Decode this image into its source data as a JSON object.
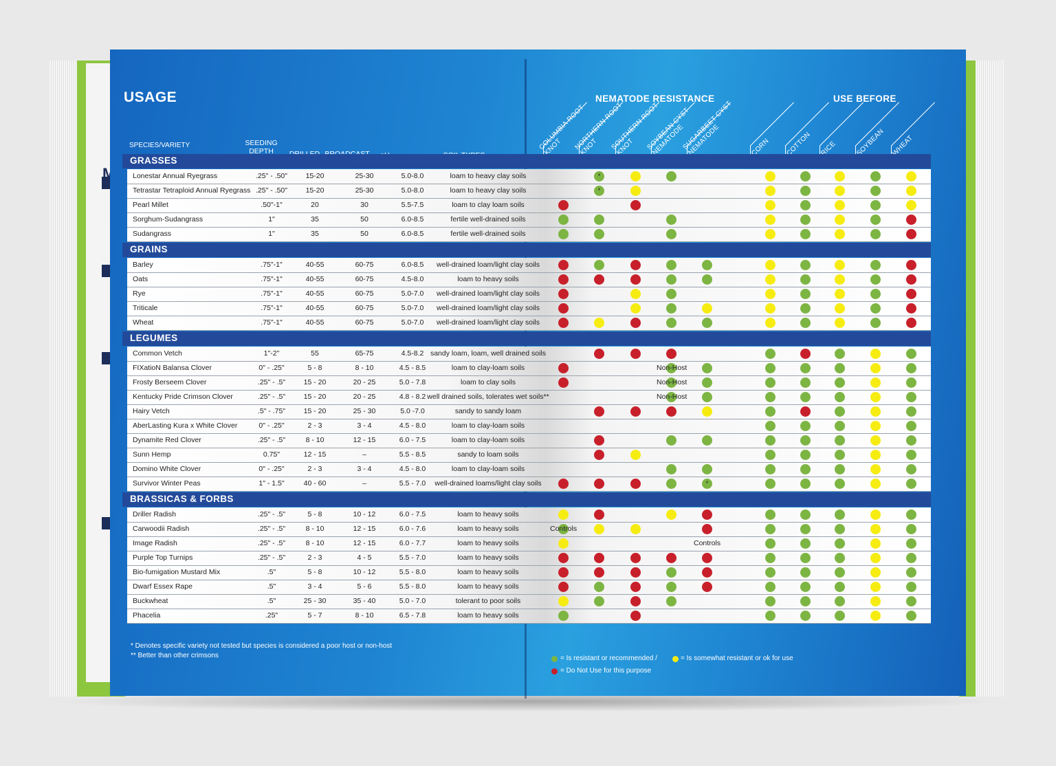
{
  "usage_title": "USAGE",
  "headers": {
    "species": "SPECIES/VARIETY",
    "seeding_depth": "SEEDING DEPTH",
    "drilled": "DRILLED",
    "broadcast": "BROADCAST",
    "ph": "pH",
    "soil_types": "SOIL TYPES",
    "nematode": "NEMATODE RESISTANCE",
    "use_before": "USE BEFORE"
  },
  "nematode_cols": [
    "COLUMBIA ROOT KNOT",
    "NORTHERN ROOT KNOT",
    "SOUTHERN ROOT KNOT",
    "SOYBEAN CYST NEMATODE",
    "SUGARBEET CYST NEMATODE"
  ],
  "use_before_cols": [
    "CORN",
    "COTTON",
    "RICE",
    "SOYBEAN",
    "WHEAT"
  ],
  "legend_codes": {
    "g": "resistant or recommended",
    "y": "somewhat resistant or ok for use",
    "r": "do not use"
  },
  "colors": {
    "green": "#7db543",
    "yellow": "#f6ec12",
    "red": "#c8202b",
    "band": "#234a9a"
  },
  "sections": [
    {
      "title": "GRASSES",
      "rows": [
        {
          "name": "Lonestar Annual Ryegrass",
          "depth": ".25\" - .50\"",
          "drilled": "15-20",
          "broadcast": "25-30",
          "ph": "5.0-8.0",
          "soil": "loam to heavy clay soils",
          "nem": [
            "",
            "g*",
            "y",
            "g",
            ""
          ],
          "use": [
            "y",
            "g",
            "y",
            "g",
            "y"
          ]
        },
        {
          "name": "Tetrastar Tetraploid Annual Ryegrass",
          "depth": ".25\" - .50\"",
          "drilled": "15-20",
          "broadcast": "25-30",
          "ph": "5.0-8.0",
          "soil": "loam to heavy clay soils",
          "nem": [
            "",
            "g*",
            "y",
            "",
            ""
          ],
          "use": [
            "y",
            "g",
            "y",
            "g",
            "y"
          ]
        },
        {
          "name": "Pearl Millet",
          "depth": ".50\"-1\"",
          "drilled": "20",
          "broadcast": "30",
          "ph": "5.5-7.5",
          "soil": "loam to clay loam soils",
          "nem": [
            "r",
            "",
            "r",
            "",
            ""
          ],
          "use": [
            "y",
            "g",
            "y",
            "g",
            "y"
          ]
        },
        {
          "name": "Sorghum-Sudangrass",
          "depth": "1\"",
          "drilled": "35",
          "broadcast": "50",
          "ph": "6.0-8.5",
          "soil": "fertile well-drained soils",
          "nem": [
            "g",
            "g",
            "",
            "g",
            ""
          ],
          "use": [
            "y",
            "g",
            "y",
            "g",
            "r"
          ]
        },
        {
          "name": "Sudangrass",
          "depth": "1\"",
          "drilled": "35",
          "broadcast": "50",
          "ph": "6.0-8.5",
          "soil": "fertile well-drained soils",
          "nem": [
            "g",
            "g",
            "",
            "g",
            ""
          ],
          "use": [
            "y",
            "g",
            "y",
            "g",
            "r"
          ]
        }
      ]
    },
    {
      "title": "GRAINS",
      "rows": [
        {
          "name": "Barley",
          "depth": ".75\"-1\"",
          "drilled": "40-55",
          "broadcast": "60-75",
          "ph": "6.0-8.5",
          "soil": "well-drained loam/light clay soils",
          "nem": [
            "r",
            "g",
            "r",
            "g",
            "g"
          ],
          "use": [
            "y",
            "g",
            "y",
            "g",
            "r"
          ]
        },
        {
          "name": "Oats",
          "depth": ".75\"-1\"",
          "drilled": "40-55",
          "broadcast": "60-75",
          "ph": "4.5-8.0",
          "soil": "loam to heavy soils",
          "nem": [
            "r",
            "r",
            "r",
            "g",
            "g"
          ],
          "use": [
            "y",
            "g",
            "y",
            "g",
            "r"
          ]
        },
        {
          "name": "Rye",
          "depth": ".75\"-1\"",
          "drilled": "40-55",
          "broadcast": "60-75",
          "ph": "5.0-7.0",
          "soil": "well-drained loam/light clay soils",
          "nem": [
            "r",
            "",
            "y",
            "g",
            ""
          ],
          "use": [
            "y",
            "g",
            "y",
            "g",
            "r"
          ]
        },
        {
          "name": "Triticale",
          "depth": ".75\"-1\"",
          "drilled": "40-55",
          "broadcast": "60-75",
          "ph": "5.0-7.0",
          "soil": "well-drained loam/light clay soils",
          "nem": [
            "r",
            "",
            "y",
            "g",
            "y"
          ],
          "use": [
            "y",
            "g",
            "y",
            "g",
            "r"
          ]
        },
        {
          "name": "Wheat",
          "depth": ".75\"-1\"",
          "drilled": "40-55",
          "broadcast": "60-75",
          "ph": "5.0-7.0",
          "soil": "well-drained loam/light clay soils",
          "nem": [
            "r",
            "y",
            "r",
            "g",
            "g"
          ],
          "use": [
            "y",
            "g",
            "y",
            "g",
            "r"
          ]
        }
      ]
    },
    {
      "title": "LEGUMES",
      "rows": [
        {
          "name": "Common Vetch",
          "depth": "1\"-2\"",
          "drilled": "55",
          "broadcast": "65-75",
          "ph": "4.5-8.2",
          "soil": "sandy loam, loam, well drained soils",
          "nem": [
            "",
            "r",
            "r",
            "r",
            ""
          ],
          "use": [
            "g",
            "r",
            "g",
            "y",
            "g"
          ]
        },
        {
          "name": "FIXatioN Balansa Clover",
          "depth": "0\" - .25\"",
          "drilled": "5 - 8",
          "broadcast": "8 - 10",
          "ph": "4.5 - 8.5",
          "soil": "loam to clay-loam soils",
          "nem": [
            "r",
            "",
            "",
            "g",
            "g"
          ],
          "overlay": "Non-Host",
          "use": [
            "g",
            "g",
            "g",
            "y",
            "g"
          ]
        },
        {
          "name": "Frosty Berseem Clover",
          "depth": ".25\" - .5\"",
          "drilled": "15 - 20",
          "broadcast": "20 - 25",
          "ph": "5.0 - 7.8",
          "soil": "loam to clay soils",
          "nem": [
            "r",
            "",
            "",
            "g",
            "g"
          ],
          "overlay": "Non-Host",
          "use": [
            "g",
            "g",
            "g",
            "y",
            "g"
          ]
        },
        {
          "name": "Kentucky Pride Crimson Clover",
          "depth": ".25\" - .5\"",
          "drilled": "15 - 20",
          "broadcast": "20 - 25",
          "ph": "4.8 - 8.2",
          "soil": "well drained soils, tolerates wet soils**",
          "nem": [
            "",
            "",
            "",
            "g",
            "g"
          ],
          "overlay": "Non-Host",
          "use": [
            "g",
            "g",
            "g",
            "y",
            "g"
          ]
        },
        {
          "name": "Hairy Vetch",
          "depth": ".5\" - .75\"",
          "drilled": "15 - 20",
          "broadcast": "25 - 30",
          "ph": "5.0 -7.0",
          "soil": "sandy to sandy loam",
          "nem": [
            "",
            "r",
            "r",
            "r",
            "y"
          ],
          "use": [
            "g",
            "r",
            "g",
            "y",
            "g"
          ]
        },
        {
          "name": "AberLasting Kura x White Clover",
          "depth": "0\" - .25\"",
          "drilled": "2 - 3",
          "broadcast": "3 - 4",
          "ph": "4.5 - 8.0",
          "soil": "loam to clay-loam soils",
          "nem": [
            "",
            "",
            "",
            "",
            ""
          ],
          "use": [
            "g",
            "g",
            "g",
            "y",
            "g"
          ]
        },
        {
          "name": "Dynamite Red Clover",
          "depth": ".25\" - .5\"",
          "drilled": "8 - 10",
          "broadcast": "12 - 15",
          "ph": "6.0 - 7.5",
          "soil": "loam to clay-loam soils",
          "nem": [
            "",
            "r",
            "",
            "g",
            "g"
          ],
          "use": [
            "g",
            "g",
            "g",
            "y",
            "g"
          ]
        },
        {
          "name": "Sunn Hemp",
          "depth": "0.75\"",
          "drilled": "12 - 15",
          "broadcast": "–",
          "ph": "5.5 - 8.5",
          "soil": "sandy to loam soils",
          "nem": [
            "",
            "r",
            "y",
            "",
            ""
          ],
          "use": [
            "g",
            "g",
            "g",
            "y",
            "g"
          ]
        },
        {
          "name": "Domino White Clover",
          "depth": "0\" - .25\"",
          "drilled": "2 - 3",
          "broadcast": "3 - 4",
          "ph": "4.5 - 8.0",
          "soil": "loam to clay-loam soils",
          "nem": [
            "",
            "",
            "",
            "g",
            "g"
          ],
          "use": [
            "g",
            "g",
            "g",
            "y",
            "g"
          ]
        },
        {
          "name": "Survivor Winter Peas",
          "depth": "1\" - 1.5\"",
          "drilled": "40 - 60",
          "broadcast": "–",
          "ph": "5.5 - 7.0",
          "soil": "well-drained loams/light clay soils",
          "nem": [
            "r",
            "r",
            "r",
            "g",
            "g*"
          ],
          "use": [
            "g",
            "g",
            "g",
            "y",
            "g"
          ]
        }
      ]
    },
    {
      "title": "BRASSICAS & FORBS",
      "rows": [
        {
          "name": "Driller Radish",
          "depth": ".25\" - .5\"",
          "drilled": "5 - 8",
          "broadcast": "10 - 12",
          "ph": "6.0 - 7.5",
          "soil": "loam to heavy soils",
          "nem": [
            "y",
            "r",
            "",
            "y",
            "r"
          ],
          "use": [
            "g",
            "g",
            "g",
            "y",
            "g"
          ]
        },
        {
          "name": "Carwoodii Radish",
          "depth": ".25\" - .5\"",
          "drilled": "8 - 10",
          "broadcast": "12 - 15",
          "ph": "6.0 - 7.6",
          "soil": "loam to heavy soils",
          "nem": [
            "g",
            "y",
            "y",
            "",
            "r"
          ],
          "overlay_col0": "Controls",
          "use": [
            "g",
            "g",
            "g",
            "y",
            "g"
          ]
        },
        {
          "name": "Image Radish",
          "depth": ".25\" - .5\"",
          "drilled": "8 - 10",
          "broadcast": "12 - 15",
          "ph": "6.0 - 7.7",
          "soil": "loam to heavy soils",
          "nem": [
            "y",
            "",
            "",
            "",
            ""
          ],
          "overlay_col4": "Controls",
          "use": [
            "g",
            "g",
            "g",
            "y",
            "g"
          ]
        },
        {
          "name": "Purple Top Turnips",
          "depth": ".25\" - .5\"",
          "drilled": "2 - 3",
          "broadcast": "4 - 5",
          "ph": "5.5 - 7.0",
          "soil": "loam to heavy soils",
          "nem": [
            "r",
            "r",
            "r",
            "r",
            "r"
          ],
          "use": [
            "g",
            "g",
            "g",
            "y",
            "g"
          ]
        },
        {
          "name": "Bio-fumigation Mustard Mix",
          "depth": ".5\"",
          "drilled": "5 - 8",
          "broadcast": "10 - 12",
          "ph": "5.5 - 8.0",
          "soil": "loam to heavy soils",
          "nem": [
            "r",
            "r",
            "r",
            "g",
            "r"
          ],
          "use": [
            "g",
            "g",
            "g",
            "y",
            "g"
          ]
        },
        {
          "name": "Dwarf Essex Rape",
          "depth": ".5\"",
          "drilled": "3 - 4",
          "broadcast": "5 - 6",
          "ph": "5.5 - 8.0",
          "soil": "loam to heavy soils",
          "nem": [
            "r",
            "g",
            "r",
            "g",
            "r"
          ],
          "use": [
            "g",
            "g",
            "g",
            "y",
            "g"
          ]
        },
        {
          "name": "Buckwheat",
          "depth": ".5\"",
          "drilled": "25 - 30",
          "broadcast": "35 - 40",
          "ph": "5.0 - 7.0",
          "soil": "tolerant to poor soils",
          "nem": [
            "y",
            "g",
            "r",
            "g",
            ""
          ],
          "use": [
            "g",
            "g",
            "g",
            "y",
            "g"
          ]
        },
        {
          "name": "Phacelia",
          "depth": ".25\"",
          "drilled": "5 - 7",
          "broadcast": "8 - 10",
          "ph": "6.5 - 7.8",
          "soil": "loam to heavy soils",
          "nem": [
            "g",
            "",
            "r",
            "",
            ""
          ],
          "use": [
            "g",
            "g",
            "g",
            "y",
            "g"
          ]
        }
      ]
    }
  ],
  "footnotes": [
    "* Denotes specific variety not tested but species is considered a poor host or non-host",
    "** Better than other crimsons"
  ],
  "legend": {
    "line1_a": "= Is resistant or recommended /",
    "line1_b": "= Is somewhat resistant or ok for use",
    "line2": "= Do Not Use for this purpose"
  },
  "underpage_letter": "M"
}
